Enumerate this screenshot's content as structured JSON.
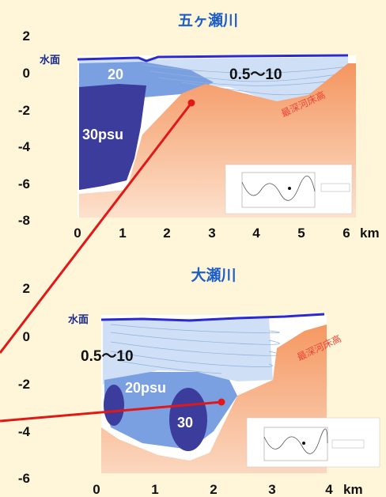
{
  "panels": [
    {
      "title": "五ヶ瀬川",
      "y_ticks": [
        "2",
        "0",
        "-2",
        "-4",
        "-6",
        "-8"
      ],
      "x_ticks": [
        "0",
        "1",
        "2",
        "3",
        "4",
        "5",
        "6"
      ],
      "x_unit": "km",
      "water_surface_label": "水面",
      "salinity_labels": [
        "20",
        "30psu",
        "0.5～10"
      ],
      "riverbed_label": "最深河床高"
    },
    {
      "title": "大瀬川",
      "y_ticks": [
        "2",
        "0",
        "-2",
        "-4",
        "-6"
      ],
      "x_ticks": [
        "0",
        "1",
        "2",
        "3",
        "4"
      ],
      "x_unit": "km",
      "water_surface_label": "水面",
      "salinity_labels": [
        "0.5～10",
        "20psu",
        "30"
      ],
      "riverbed_label": "最深河床高"
    }
  ],
  "colors": {
    "background": "#fff6d9",
    "title": "#1d5ec8",
    "water_surface": "#2a2ad0",
    "salinity_30": "#3c3c9c",
    "salinity_20": "#6f95de",
    "salinity_10": "#b8d0f0",
    "riverbed": "#f6a67a",
    "arrow": "#e01818"
  }
}
